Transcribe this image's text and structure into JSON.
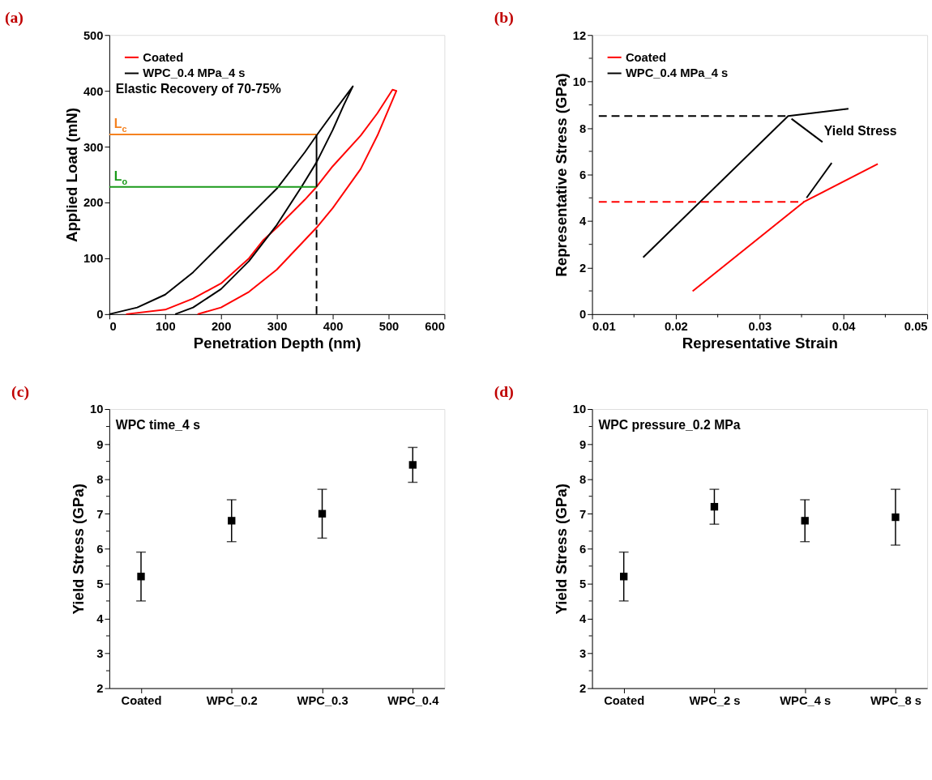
{
  "chart_data": [
    {
      "type": "line",
      "title": "(a)",
      "xlabel": "Penetration Depth (nm)",
      "ylabel": "Applied Load (mN)",
      "xlim": [
        0,
        600
      ],
      "xticks": [
        0,
        100,
        200,
        300,
        400,
        500,
        600
      ],
      "ylim": [
        0,
        500
      ],
      "yticks": [
        0,
        100,
        200,
        300,
        400,
        500
      ],
      "legend": "top left",
      "grid": false,
      "series": [
        {
          "name": "Coated",
          "color": "#ff0000",
          "x": [
            30,
            100,
            150,
            200,
            250,
            276,
            300,
            350,
            371,
            400,
            450,
            480,
            507,
            514,
            480,
            450,
            400,
            371,
            300,
            250,
            200,
            158
          ],
          "values": [
            0,
            8,
            28,
            55,
            100,
            133,
            155,
            205,
            228,
            265,
            320,
            360,
            402,
            400,
            320,
            260,
            190,
            155,
            80,
            40,
            12,
            0
          ]
        },
        {
          "name": "WPC_0.4 MPa_4 s",
          "color": "#000000",
          "x": [
            0,
            50,
            100,
            150,
            200,
            250,
            300,
            350,
            371,
            400,
            436,
            420,
            400,
            371,
            344,
            300,
            250,
            200,
            150,
            118
          ],
          "values": [
            0,
            12,
            35,
            75,
            125,
            175,
            225,
            290,
            320,
            360,
            408,
            375,
            330,
            272,
            228,
            160,
            95,
            45,
            12,
            0
          ]
        },
        {
          "name": "L$_{c}$",
          "color": "#f58220",
          "x": [
            371,
            0
          ],
          "values": [
            322,
            322
          ]
        },
        {
          "name": "L$_{o}$",
          "color": "#1a9a1a",
          "x": [
            371,
            0
          ],
          "values": [
            228,
            228
          ]
        },
        {
          "color": "#000000",
          "x": [
            371,
            371
          ],
          "values": [
            228,
            322
          ]
        },
        {
          "color": "#000000",
          "line_style": "dashed",
          "x": [
            371,
            371
          ],
          "values": [
            0,
            228
          ]
        }
      ],
      "annotations": [
        "Elastic Recovery of 70-75%"
      ]
    },
    {
      "type": "line",
      "title": "(b)",
      "xlabel": "Representative Strain",
      "ylabel": "Representative Stress (GPa)",
      "xlim": [
        0.01,
        0.05
      ],
      "xticks": [
        0.01,
        {
          "value": 0.015,
          "label": null
        },
        0.02,
        {
          "value": 0.025,
          "label": null
        },
        0.03,
        {
          "value": 0.035,
          "label": null
        },
        0.04,
        {
          "value": 0.045,
          "label": null
        },
        0.05
      ],
      "ylim": [
        0,
        12
      ],
      "yticks": [
        0,
        {
          "value": 1,
          "label": null
        },
        2,
        {
          "value": 3,
          "label": null
        },
        4,
        {
          "value": 5,
          "label": null
        },
        6,
        {
          "value": 7,
          "label": null
        },
        8,
        {
          "value": 9,
          "label": null
        },
        10,
        {
          "value": 11,
          "label": null
        },
        12
      ],
      "legend": "top left",
      "grid": false,
      "series": [
        {
          "name": "Coated",
          "color": "#ff0000",
          "x": [
            0.022,
            0.0353,
            0.0441
          ],
          "values": [
            0.99,
            4.83,
            6.46
          ]
        },
        {
          "name": "WPC_0.4 MPa_4 s",
          "color": "#000000",
          "x": [
            0.0161,
            0.0334,
            0.0406
          ],
          "values": [
            2.44,
            8.52,
            8.83
          ]
        },
        {
          "color": "#000000",
          "line_style": "dashed",
          "x": [
            0.0108,
            0.0334
          ],
          "values": [
            8.52,
            8.52
          ]
        },
        {
          "color": "#ff0000",
          "line_style": "dashed",
          "x": [
            0.0108,
            0.0353
          ],
          "values": [
            4.83,
            4.83
          ]
        },
        {
          "color": "#000000",
          "x": [
            0.0375,
            0.0338
          ],
          "values": [
            7.4,
            8.4
          ]
        },
        {
          "color": "#000000",
          "x": [
            0.0386,
            0.0356
          ],
          "values": [
            6.5,
            5.0
          ]
        }
      ],
      "annotations": [
        {
          "text": "Yield Stress",
          "x": 0.0375,
          "y": 7.4
        }
      ]
    },
    {
      "type": "scatter",
      "title": "(c)",
      "ylabel": "Yield Stress (GPa)",
      "categories": [
        "Coated",
        "WPC_0.2",
        "WPC_0.3",
        "WPC_0.4"
      ],
      "values": [
        5.2,
        6.8,
        7.0,
        8.4
      ],
      "errors": [
        [
          4.5,
          5.9
        ],
        [
          6.2,
          7.4
        ],
        [
          6.3,
          7.7
        ],
        [
          7.9,
          8.9
        ]
      ],
      "color": "#000000",
      "marker": "square",
      "ylim": [
        2,
        10
      ],
      "yticks": [
        2,
        {
          "value": 2.5,
          "label": null
        },
        3,
        {
          "value": 3.5,
          "label": null
        },
        4,
        {
          "value": 4.5,
          "label": null
        },
        5,
        {
          "value": 5.5,
          "label": null
        },
        6,
        {
          "value": 6.5,
          "label": null
        },
        7,
        {
          "value": 7.5,
          "label": null
        },
        8,
        {
          "value": 8.5,
          "label": null
        },
        9,
        {
          "value": 9.5,
          "label": null
        },
        10
      ],
      "grid": false,
      "annotations": [
        "WPC time_4 s"
      ]
    },
    {
      "type": "scatter",
      "title": "(d)",
      "ylabel": "Yield Stress (GPa)",
      "categories": [
        "Coated",
        "WPC_2 s",
        "WPC_4 s",
        "WPC_8 s"
      ],
      "values": [
        5.2,
        7.2,
        6.8,
        6.9
      ],
      "errors": [
        [
          4.5,
          5.9
        ],
        [
          6.7,
          7.7
        ],
        [
          6.2,
          7.4
        ],
        [
          6.1,
          7.7
        ]
      ],
      "color": "#000000",
      "marker": "square",
      "ylim": [
        2,
        10
      ],
      "yticks": [
        2,
        {
          "value": 2.5,
          "label": null
        },
        3,
        {
          "value": 3.5,
          "label": null
        },
        4,
        {
          "value": 4.5,
          "label": null
        },
        5,
        {
          "value": 5.5,
          "label": null
        },
        6,
        {
          "value": 6.5,
          "label": null
        },
        7,
        {
          "value": 7.5,
          "label": null
        },
        8,
        {
          "value": 8.5,
          "label": null
        },
        9,
        {
          "value": 9.5,
          "label": null
        },
        10
      ],
      "grid": false,
      "annotations": [
        "WPC pressure_0.2 MPa"
      ]
    }
  ]
}
